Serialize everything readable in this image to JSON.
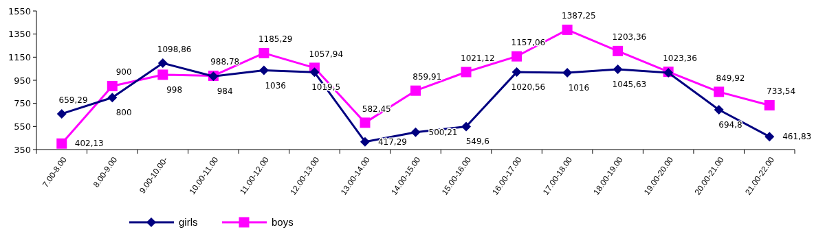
{
  "chart_data": {
    "type": "line",
    "categories": [
      "7.00-8.00",
      "8.00-9.00",
      "9.00-10.00-",
      "10.00-11.00",
      "11.00-12.00",
      "12.00-13.00",
      "13.00-14.00",
      "14.00-15.00",
      "15.00-16.00",
      "16.00-17.00",
      "17.00-18.00",
      "18.00-19.00",
      "19.00-20.00",
      "20.00-21.00",
      "21.00-22.00"
    ],
    "series": [
      {
        "name": "girls",
        "color": "#000080",
        "marker": "diamond",
        "values": [
          659.29,
          800,
          1098.86,
          984,
          1036,
          1019.5,
          417.29,
          500.21,
          549.6,
          1020.56,
          1016,
          1045.63,
          1015,
          694.8,
          461.83
        ],
        "value_labels": [
          "659,29",
          "800",
          "1098,86",
          "984",
          "1036",
          "1019,5",
          "417,29",
          "500,21",
          "549,6",
          "1020,56",
          "1016",
          "1045,63",
          null,
          "694,8",
          "461,83"
        ]
      },
      {
        "name": "boys",
        "color": "#ff00ff",
        "marker": "square",
        "values": [
          402.13,
          900,
          998,
          988.78,
          1185.29,
          1057.94,
          582.45,
          859.91,
          1021.12,
          1157.06,
          1387.25,
          1203.36,
          1023.36,
          849.92,
          733.54
        ],
        "value_labels": [
          "402,13",
          "900",
          "998",
          "988,78",
          "1185,29",
          "1057,94",
          "582,45",
          "859,91",
          "1021,12",
          "1157,06",
          "1387,25",
          "1203,36",
          "1023,36",
          "849,92",
          "733,54"
        ]
      }
    ],
    "ylim": [
      350,
      1550
    ],
    "yticks": [
      350,
      550,
      750,
      950,
      1150,
      1350,
      1550
    ],
    "grid": false,
    "legend": "bottom"
  }
}
